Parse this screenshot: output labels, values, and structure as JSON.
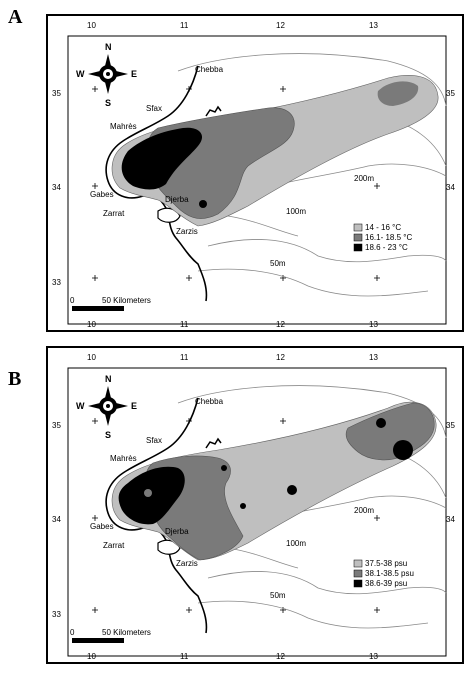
{
  "panels": [
    {
      "letter": "A",
      "lon_ticks": [
        "10",
        "11",
        "12",
        "13"
      ],
      "lat_ticks": [
        "35",
        "34",
        "33"
      ],
      "places": {
        "chebba": "Chebba",
        "sfax": "Sfax",
        "mahres": "Mahrès",
        "gabes": "Gabes",
        "zarrat": "Zarrat",
        "djerba": "Djerba",
        "zarzis": "Zarzis"
      },
      "depths": {
        "d200": "200m",
        "d100": "100m",
        "d50": "50m"
      },
      "compass": {
        "n": "N",
        "s": "S",
        "e": "E",
        "w": "W"
      },
      "scale": {
        "start": "0",
        "label": "50 Kilometers"
      },
      "legend": [
        {
          "label": "14 - 16 °C",
          "color": "#bfbfbf"
        },
        {
          "label": "16.1- 18.5 °C",
          "color": "#7a7a7a"
        },
        {
          "label": "18.6 - 23 °C",
          "color": "#000000"
        }
      ]
    },
    {
      "letter": "B",
      "lon_ticks": [
        "10",
        "11",
        "12",
        "13"
      ],
      "lat_ticks": [
        "35",
        "34",
        "33"
      ],
      "places": {
        "chebba": "Chebba",
        "sfax": "Sfax",
        "mahres": "Mahrès",
        "gabes": "Gabes",
        "zarrat": "Zarrat",
        "djerba": "Djerba",
        "zarzis": "Zarzis"
      },
      "depths": {
        "d200": "200m",
        "d100": "100m",
        "d50": "50m"
      },
      "compass": {
        "n": "N",
        "s": "S",
        "e": "E",
        "w": "W"
      },
      "scale": {
        "start": "0",
        "label": "50 Kilometers"
      },
      "legend": [
        {
          "label": "37.5-38 psu",
          "color": "#bfbfbf"
        },
        {
          "label": "38.1-38.5 psu",
          "color": "#7a7a7a"
        },
        {
          "label": "38.6-39 psu",
          "color": "#000000"
        }
      ]
    }
  ]
}
